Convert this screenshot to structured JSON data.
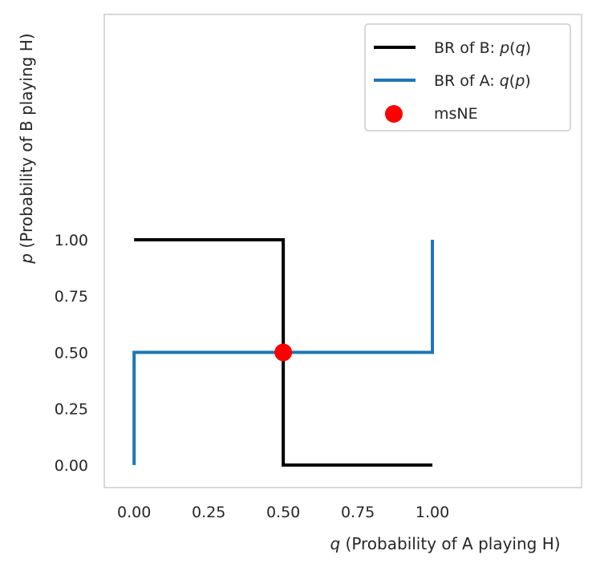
{
  "chart_data": {
    "type": "line",
    "xlabel": {
      "var": "q",
      "rest": " (Probability of A playing H)"
    },
    "ylabel": {
      "var": "p",
      "rest": " (Probability of B playing H)"
    },
    "xlim": [
      -0.1,
      1.5
    ],
    "ylim": [
      -0.1,
      2.0
    ],
    "xticks": [
      "0.00",
      "0.25",
      "0.50",
      "0.75",
      "1.00"
    ],
    "yticks": [
      "0.00",
      "0.25",
      "0.50",
      "0.75",
      "1.00"
    ],
    "grid": false,
    "legend_position": "top-right",
    "series": [
      {
        "name": {
          "pre": "BR of B: ",
          "var1": "p",
          "open": "(",
          "var2": "q",
          "close": ")"
        },
        "color": "#000000",
        "x": [
          0.0,
          0.5,
          0.5,
          1.0
        ],
        "y": [
          1.0,
          1.0,
          0.0,
          0.0
        ]
      },
      {
        "name": {
          "pre": "BR of A: ",
          "var1": "q",
          "open": "(",
          "var2": "p",
          "close": ")"
        },
        "color": "#1f77b4",
        "x": [
          0.0,
          0.0,
          1.0,
          1.0
        ],
        "y": [
          0.0,
          0.5,
          0.5,
          1.0
        ]
      }
    ],
    "points": [
      {
        "name": "msNE",
        "x": 0.5,
        "y": 0.5,
        "color": "#ff0000"
      }
    ]
  }
}
